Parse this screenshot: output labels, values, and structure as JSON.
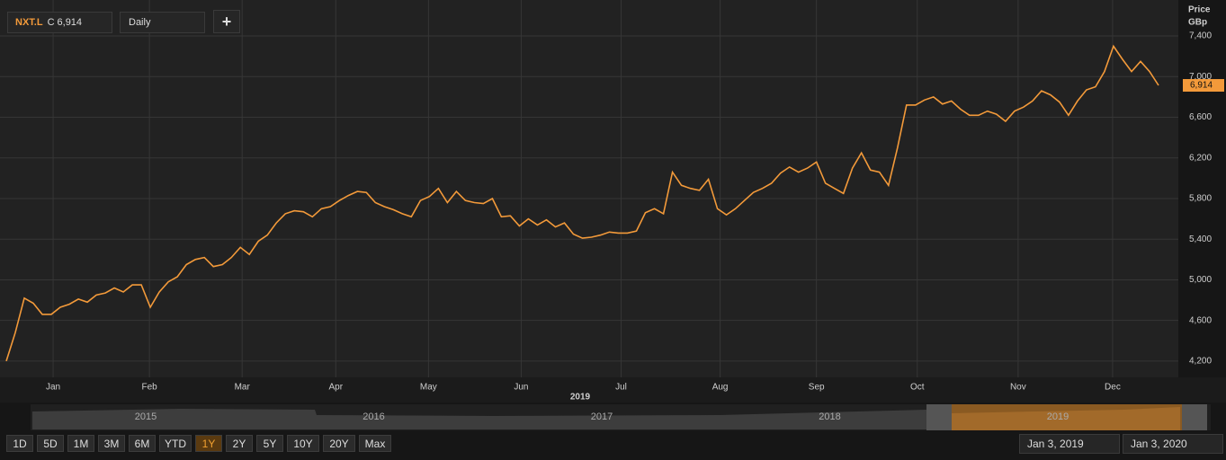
{
  "header": {
    "symbol": "NXT.L",
    "close_prefix": "C",
    "close": "6,914",
    "interval": "Daily",
    "add": "+"
  },
  "chart_data": {
    "type": "line",
    "axis_title": "Price",
    "axis_unit": "GBp",
    "year_label": "2019",
    "series": [
      {
        "name": "NXT.L",
        "color": "#f39a3a",
        "values": [
          4200,
          4480,
          4820,
          4770,
          4660,
          4660,
          4730,
          4760,
          4810,
          4780,
          4850,
          4870,
          4920,
          4880,
          4950,
          4950,
          4730,
          4880,
          4980,
          5030,
          5150,
          5200,
          5220,
          5130,
          5150,
          5220,
          5320,
          5250,
          5380,
          5440,
          5560,
          5650,
          5680,
          5670,
          5620,
          5700,
          5720,
          5780,
          5830,
          5870,
          5860,
          5760,
          5720,
          5690,
          5650,
          5620,
          5780,
          5820,
          5900,
          5760,
          5870,
          5780,
          5760,
          5750,
          5800,
          5620,
          5630,
          5530,
          5600,
          5540,
          5590,
          5520,
          5560,
          5450,
          5410,
          5420,
          5440,
          5470,
          5460,
          5460,
          5480,
          5660,
          5700,
          5650,
          6060,
          5930,
          5900,
          5880,
          5990,
          5700,
          5640,
          5700,
          5780,
          5860,
          5900,
          5950,
          6050,
          6110,
          6060,
          6100,
          6160,
          5950,
          5900,
          5850,
          6100,
          6250,
          6080,
          6060,
          5930,
          6300,
          6720,
          6720,
          6770,
          6800,
          6730,
          6760,
          6680,
          6620,
          6620,
          6660,
          6630,
          6560,
          6660,
          6700,
          6760,
          6860,
          6820,
          6750,
          6620,
          6760,
          6870,
          6900,
          7050,
          7300,
          7170,
          7050,
          7150,
          7050,
          6914
        ]
      }
    ],
    "last_price": {
      "value": 6914,
      "label": "6,914"
    },
    "xlim": [
      -0.4,
      130.2
    ],
    "xticks": [
      {
        "value": 5.2,
        "label": "Jan"
      },
      {
        "value": 15.9,
        "label": "Feb"
      },
      {
        "value": 26.2,
        "label": "Mar"
      },
      {
        "value": 36.6,
        "label": "Apr"
      },
      {
        "value": 46.9,
        "label": "May"
      },
      {
        "value": 57.2,
        "label": "Jun"
      },
      {
        "value": 68.3,
        "label": "Jul"
      },
      {
        "value": 79.3,
        "label": "Aug"
      },
      {
        "value": 90,
        "label": "Sep"
      },
      {
        "value": 101.2,
        "label": "Oct"
      },
      {
        "value": 112.4,
        "label": "Nov"
      },
      {
        "value": 122.9,
        "label": "Dec"
      }
    ],
    "ylim": [
      4040,
      7710
    ],
    "yticks": [
      {
        "value": 4200,
        "label": "4,200"
      },
      {
        "value": 4600,
        "label": "4,600"
      },
      {
        "value": 5000,
        "label": "5,000"
      },
      {
        "value": 5400,
        "label": "5,400"
      },
      {
        "value": 5800,
        "label": "5,800"
      },
      {
        "value": 6200,
        "label": "6,200"
      },
      {
        "value": 6600,
        "label": "6,600"
      },
      {
        "value": 7000,
        "label": "7,000"
      },
      {
        "value": 7400,
        "label": "7,400"
      }
    ],
    "grid": true
  },
  "navigator": {
    "years": [
      "2015",
      "2016",
      "2017",
      "2018",
      "2019"
    ]
  },
  "ranges": [
    "1D",
    "5D",
    "1M",
    "3M",
    "6M",
    "YTD",
    "1Y",
    "2Y",
    "5Y",
    "10Y",
    "20Y",
    "Max"
  ],
  "active_range": 6,
  "date_from": "Jan 3, 2019",
  "date_to": "Jan 3, 2020"
}
